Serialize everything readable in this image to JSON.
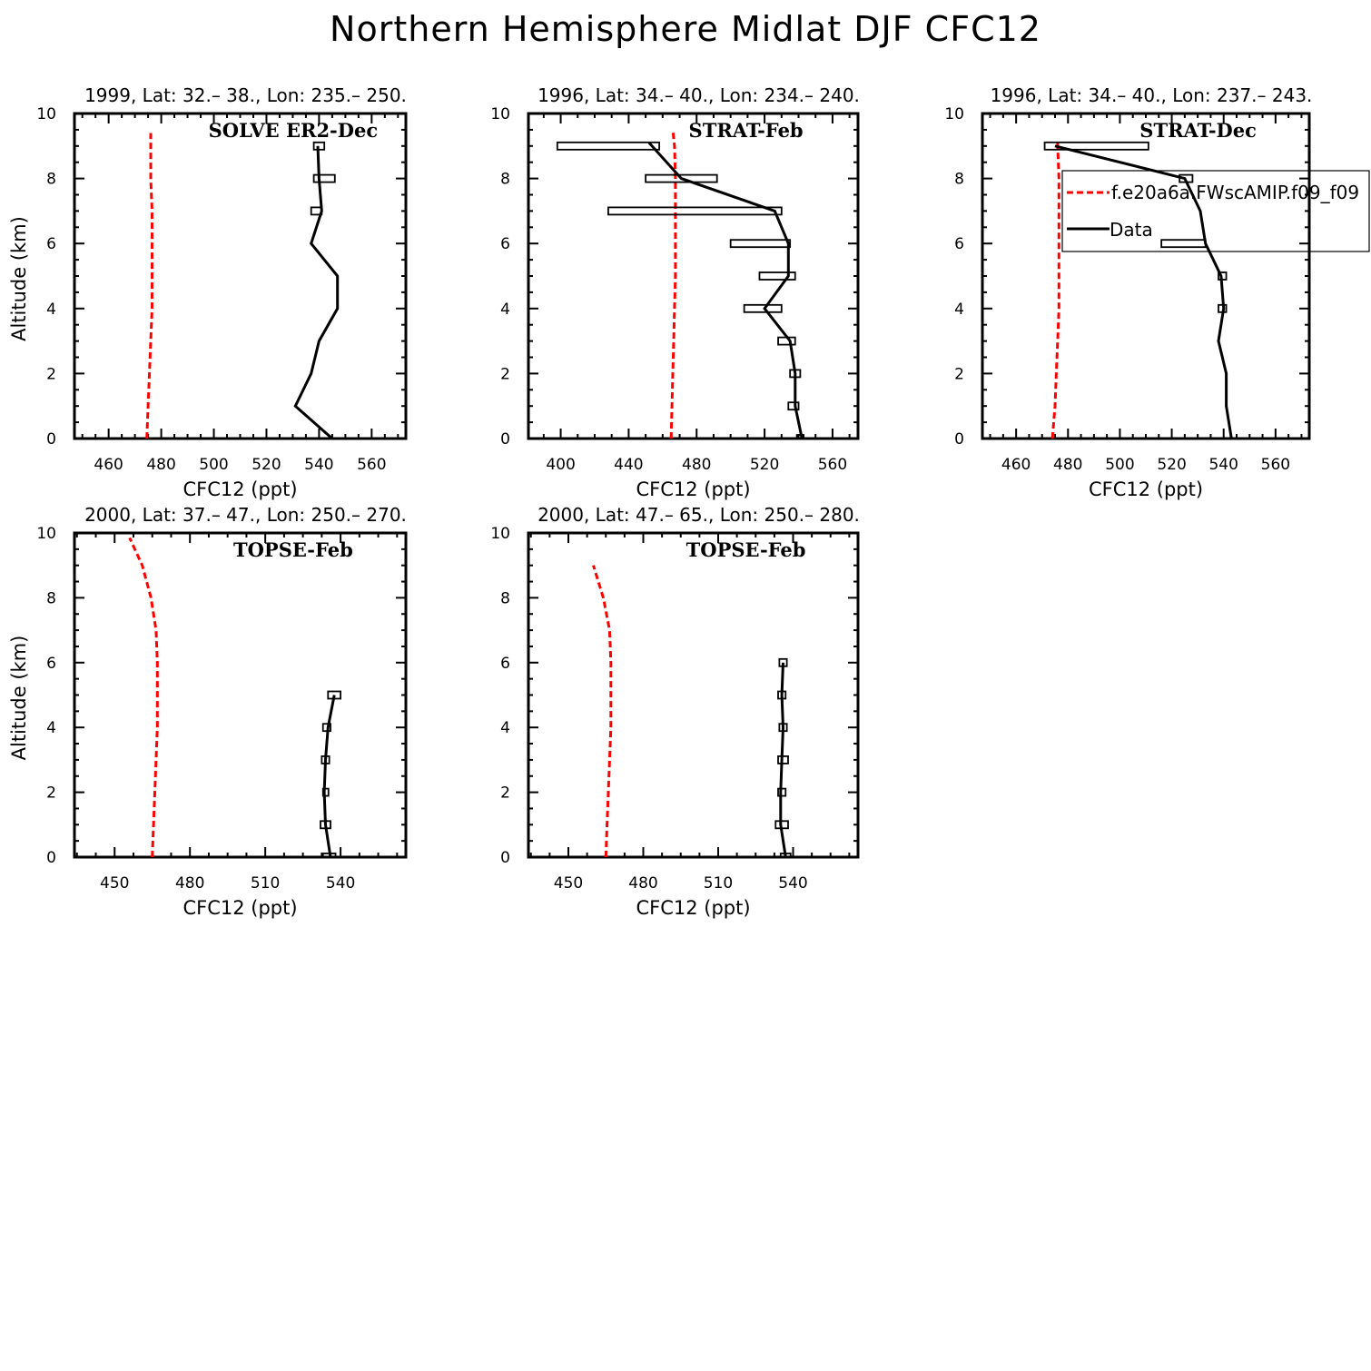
{
  "figure": {
    "title": "Northern Hemisphere Midlat DJF CFC12",
    "legend": {
      "model_label": "f.e20a6a.FWscAMIP.f09_f09",
      "data_label": "Data",
      "model_color": "#ff0000",
      "data_color": "#000000"
    }
  },
  "chart_data": [
    {
      "type": "line",
      "title": "1999, Lat: 32.– 38., Lon: 235.– 250.",
      "campaign": "SOLVE ER2-Dec",
      "xlabel": "CFC12 (ppt)",
      "ylabel": "Altitude (km)",
      "xlim": [
        447,
        573
      ],
      "ylim": [
        0,
        10
      ],
      "xticks": [
        460,
        480,
        500,
        520,
        540,
        560
      ],
      "yticks": [
        0,
        2,
        4,
        6,
        8,
        10
      ],
      "model": {
        "x": [
          474.5,
          475,
          475.5,
          476,
          476.5,
          476.5,
          476.5,
          476.5,
          476,
          476
        ],
        "y": [
          0,
          1,
          2,
          3,
          4,
          5,
          6,
          7,
          8,
          9.4
        ]
      },
      "data": {
        "x": [
          545,
          531,
          537,
          540,
          547,
          547,
          537,
          541,
          540,
          539.5
        ],
        "y": [
          0,
          1,
          2,
          3,
          4,
          5,
          6,
          7,
          8,
          9
        ]
      },
      "boxes": [
        {
          "y": 9,
          "lo": 538,
          "hi": 542
        },
        {
          "y": 8,
          "lo": 538,
          "hi": 546
        },
        {
          "y": 7,
          "lo": 537,
          "hi": 541
        }
      ]
    },
    {
      "type": "line",
      "title": "1996, Lat: 34.– 40., Lon: 234.– 240.",
      "campaign": "STRAT-Feb",
      "xlabel": "CFC12 (ppt)",
      "ylabel": "",
      "xlim": [
        381,
        575
      ],
      "ylim": [
        0,
        10
      ],
      "xticks": [
        400,
        440,
        480,
        520,
        560
      ],
      "yticks": [
        0,
        2,
        4,
        6,
        8,
        10
      ],
      "model": {
        "x": [
          465,
          465.5,
          466,
          466.5,
          467,
          467.5,
          467.5,
          467.5,
          467.5,
          467,
          466
        ],
        "y": [
          0,
          1,
          2,
          3,
          4,
          5,
          6,
          7,
          8,
          9,
          9.5
        ]
      },
      "data": {
        "x": [
          542,
          538,
          538,
          535,
          520,
          534,
          534,
          526,
          471,
          452
        ],
        "y": [
          0,
          1,
          2,
          3,
          4,
          5,
          6,
          7,
          8,
          9.1
        ]
      },
      "boxes": [
        {
          "y": 9,
          "lo": 398,
          "hi": 458
        },
        {
          "y": 8,
          "lo": 450,
          "hi": 492
        },
        {
          "y": 7,
          "lo": 428,
          "hi": 530
        },
        {
          "y": 6,
          "lo": 500,
          "hi": 535
        },
        {
          "y": 5,
          "lo": 517,
          "hi": 538
        },
        {
          "y": 4,
          "lo": 508,
          "hi": 530
        },
        {
          "y": 3,
          "lo": 528,
          "hi": 538
        },
        {
          "y": 2,
          "lo": 535,
          "hi": 541
        },
        {
          "y": 1,
          "lo": 534,
          "hi": 540
        },
        {
          "y": 0,
          "lo": 539,
          "hi": 543
        }
      ]
    },
    {
      "type": "line",
      "title": "1996, Lat: 34.– 40., Lon: 237.– 243.",
      "campaign": "STRAT-Dec",
      "xlabel": "CFC12 (ppt)",
      "ylabel": "",
      "xlim": [
        447,
        573
      ],
      "ylim": [
        0,
        10
      ],
      "xticks": [
        460,
        480,
        500,
        520,
        540,
        560
      ],
      "yticks": [
        0,
        2,
        4,
        6,
        8,
        10
      ],
      "legend": true,
      "model": {
        "x": [
          474,
          475,
          475.5,
          476,
          476.5,
          476.5,
          476.5,
          476.5,
          476.5,
          476,
          476
        ],
        "y": [
          0,
          1,
          2,
          3,
          4,
          5,
          6,
          7,
          8,
          9,
          9.2
        ]
      },
      "data": {
        "x": [
          543,
          541,
          541,
          538,
          540,
          539,
          533,
          531,
          525,
          475
        ],
        "y": [
          0,
          1,
          2,
          3,
          4,
          5,
          6,
          7,
          8,
          9
        ]
      },
      "boxes": [
        {
          "y": 9,
          "lo": 471,
          "hi": 511
        },
        {
          "y": 8,
          "lo": 523,
          "hi": 528
        },
        {
          "y": 6,
          "lo": 516,
          "hi": 533
        },
        {
          "y": 5,
          "lo": 538,
          "hi": 541
        },
        {
          "y": 4,
          "lo": 538,
          "hi": 541
        }
      ]
    },
    {
      "type": "line",
      "title": "2000, Lat: 37.– 47., Lon: 250.– 270.",
      "campaign": "TOPSE-Feb",
      "xlabel": "CFC12 (ppt)",
      "ylabel": "Altitude (km)",
      "xlim": [
        434,
        566
      ],
      "ylim": [
        0,
        10
      ],
      "xticks": [
        450,
        480,
        510,
        540
      ],
      "yticks": [
        0,
        2,
        4,
        6,
        8,
        10
      ],
      "model": {
        "x": [
          465,
          465.5,
          466,
          466.5,
          467,
          467,
          467,
          466.5,
          464.5,
          461,
          456
        ],
        "y": [
          0,
          1,
          2,
          3,
          4,
          5,
          6,
          7,
          8,
          9,
          9.85
        ]
      },
      "data": {
        "x": [
          536,
          534,
          533.5,
          534,
          535,
          537.5
        ],
        "y": [
          0,
          1,
          2,
          3,
          4,
          5
        ]
      },
      "boxes": [
        {
          "y": 5,
          "lo": 535,
          "hi": 540
        },
        {
          "y": 4,
          "lo": 533,
          "hi": 536
        },
        {
          "y": 3,
          "lo": 532.5,
          "hi": 535.5
        },
        {
          "y": 2,
          "lo": 533,
          "hi": 535
        },
        {
          "y": 1,
          "lo": 532,
          "hi": 536
        },
        {
          "y": 0,
          "lo": 533,
          "hi": 538
        }
      ]
    },
    {
      "type": "line",
      "title": "2000, Lat: 47.– 65., Lon: 250.– 280.",
      "campaign": "TOPSE-Feb",
      "xlabel": "CFC12 (ppt)",
      "ylabel": "",
      "xlim": [
        434,
        566
      ],
      "ylim": [
        0,
        10
      ],
      "xticks": [
        450,
        480,
        510,
        540
      ],
      "yticks": [
        0,
        2,
        4,
        6,
        8,
        10
      ],
      "model": {
        "x": [
          465,
          465.5,
          466,
          466.5,
          467,
          467,
          467,
          466.5,
          464,
          460
        ],
        "y": [
          0,
          1,
          2,
          3,
          4,
          5,
          6,
          7,
          8,
          9
        ]
      },
      "data": {
        "x": [
          537,
          535,
          535,
          535.5,
          536,
          535.5,
          536
        ],
        "y": [
          0,
          1,
          2,
          3,
          4,
          5,
          6
        ]
      },
      "boxes": [
        {
          "y": 6,
          "lo": 534.5,
          "hi": 537.5
        },
        {
          "y": 5,
          "lo": 534,
          "hi": 537
        },
        {
          "y": 4,
          "lo": 534.5,
          "hi": 537.5
        },
        {
          "y": 3,
          "lo": 534,
          "hi": 538
        },
        {
          "y": 2,
          "lo": 534,
          "hi": 537
        },
        {
          "y": 1,
          "lo": 533,
          "hi": 538
        },
        {
          "y": 0,
          "lo": 535,
          "hi": 539
        }
      ]
    }
  ]
}
